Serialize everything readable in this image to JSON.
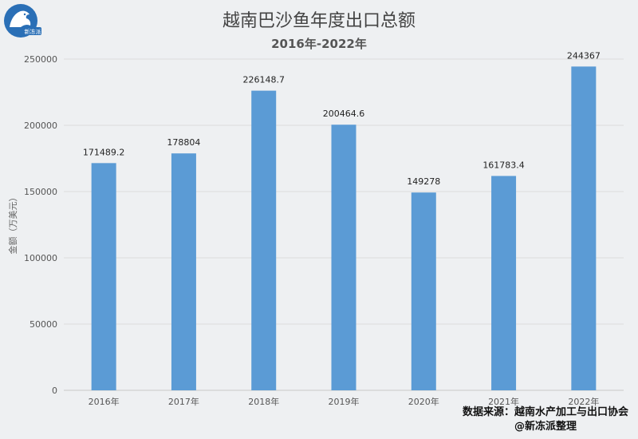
{
  "logo": {
    "text": "新冻派"
  },
  "chart_data": {
    "type": "bar",
    "title": "越南巴沙鱼年度出口总额",
    "subtitle": "2016年-2022年",
    "ylabel": "金额（万美元）",
    "xlabel": "",
    "categories": [
      "2016年",
      "2017年",
      "2018年",
      "2019年",
      "2020年",
      "2021年",
      "2022年"
    ],
    "values": [
      171489.2,
      178804,
      226148.7,
      200464.6,
      149278,
      161783.4,
      244367
    ],
    "value_labels": [
      "171489.2",
      "178804",
      "226148.7",
      "200464.6",
      "149278",
      "161783.4",
      "244367"
    ],
    "ylim": [
      0,
      250000
    ],
    "yticks": [
      0,
      50000,
      100000,
      150000,
      200000,
      250000
    ],
    "grid": true,
    "bar_color": "#5b9bd5"
  },
  "source": {
    "line1": "数据来源：越南水产加工与出口协会",
    "line2": "@新冻派整理"
  }
}
